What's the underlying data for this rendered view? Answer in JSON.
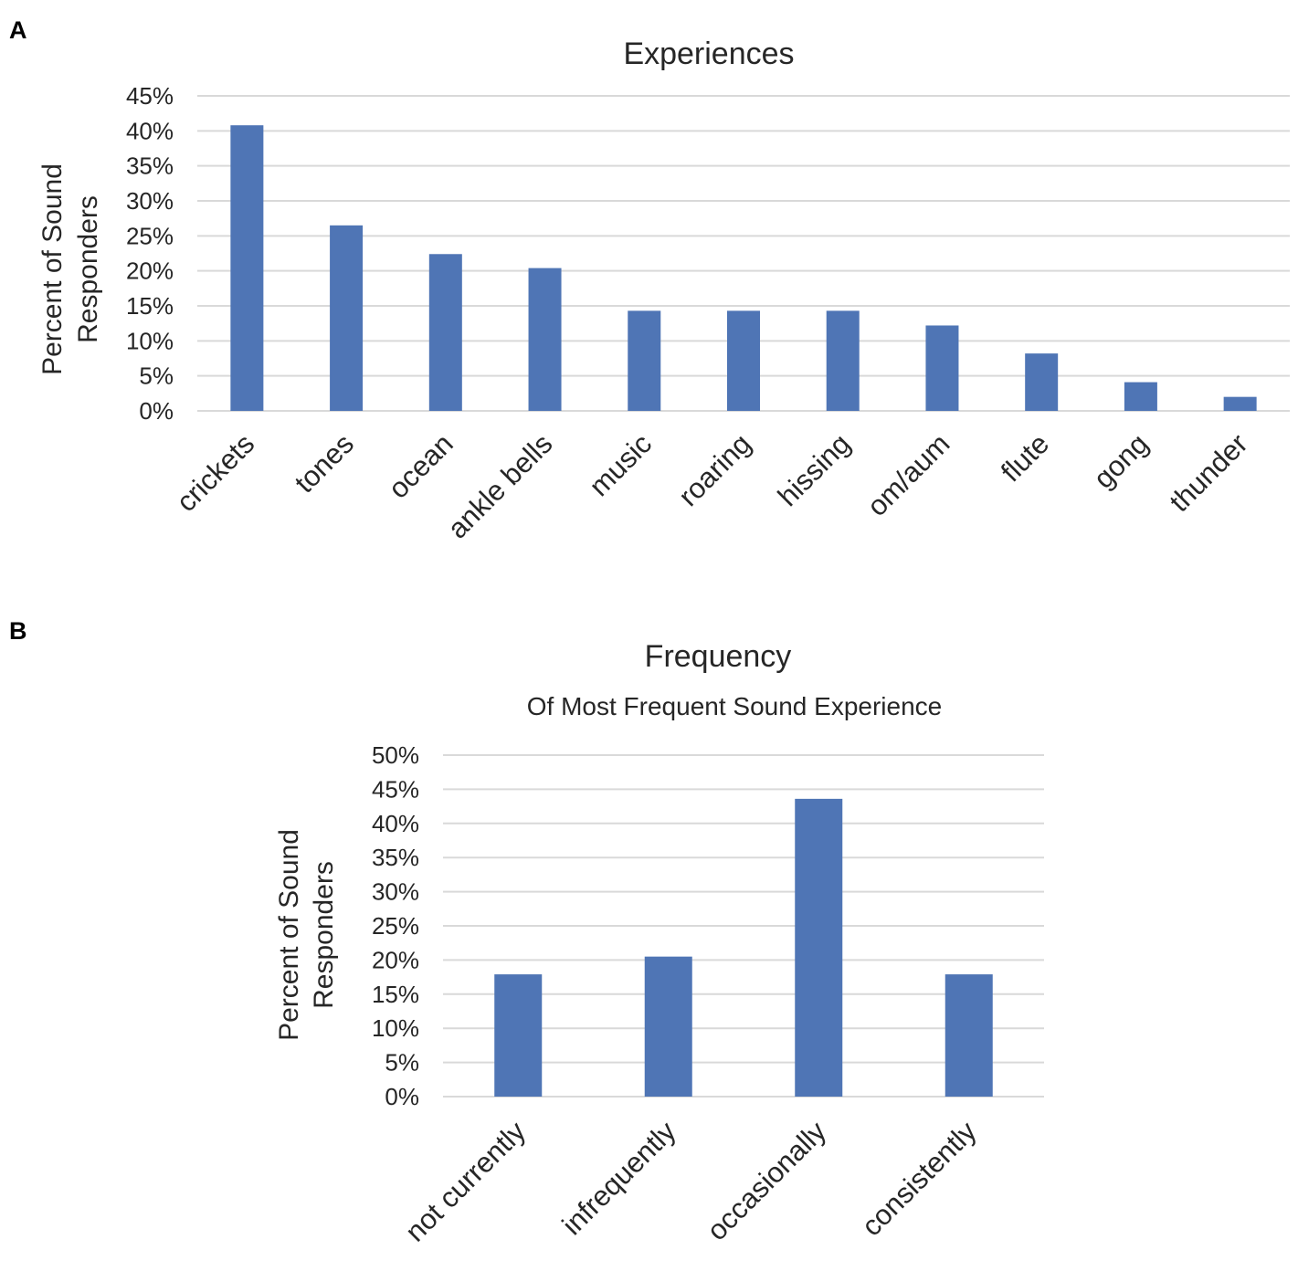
{
  "chart_data": [
    {
      "panel": "A",
      "type": "bar",
      "title": "Experiences",
      "subtitle": "",
      "xlabel": "",
      "ylabel_lines": [
        "Percent of Sound",
        "Responders"
      ],
      "ylim": [
        0,
        45
      ],
      "yticks": [
        "0%",
        "5%",
        "10%",
        "15%",
        "20%",
        "25%",
        "30%",
        "35%",
        "40%",
        "45%"
      ],
      "categories": [
        "crickets",
        "tones",
        "ocean",
        "ankle bells",
        "music",
        "roaring",
        "hissing",
        "om/aum",
        "flute",
        "gong",
        "thunder"
      ],
      "values": [
        40.8,
        26.5,
        22.4,
        20.4,
        14.3,
        14.3,
        14.3,
        12.2,
        8.2,
        4.1,
        2.0
      ],
      "color": "#4f75b5",
      "grid": true
    },
    {
      "panel": "B",
      "type": "bar",
      "title": "Frequency",
      "subtitle": "Of Most Frequent Sound Experience",
      "xlabel": "",
      "ylabel_lines": [
        "Percent of Sound",
        "Responders"
      ],
      "ylim": [
        0,
        50
      ],
      "yticks": [
        "0%",
        "5%",
        "10%",
        "15%",
        "20%",
        "25%",
        "30%",
        "35%",
        "40%",
        "45%",
        "50%"
      ],
      "categories": [
        "not currently",
        "infrequently",
        "occasionally",
        "consistently"
      ],
      "values": [
        17.9,
        20.5,
        43.6,
        17.9
      ],
      "color": "#4f75b5",
      "grid": true
    }
  ]
}
